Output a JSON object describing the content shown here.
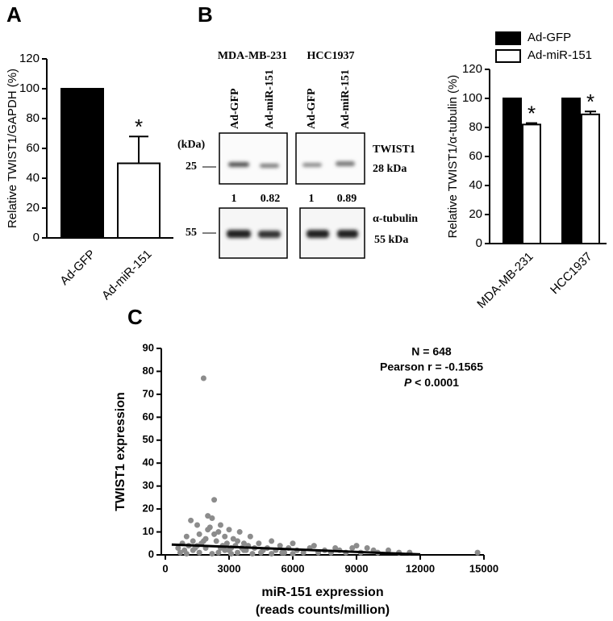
{
  "panel_labels": [
    "A",
    "B",
    "C"
  ],
  "chart_data": [
    {
      "type": "bar",
      "ylabel": "Relative TWIST1/GAPDH (%)",
      "categories": [
        "Ad-GFP",
        "Ad-miR-151"
      ],
      "values": [
        100,
        50
      ],
      "errors": [
        null,
        18
      ],
      "colors": [
        "#000000",
        "#ffffff"
      ],
      "significance": [
        null,
        "*"
      ],
      "ylim": [
        0,
        120
      ],
      "yticks": [
        0,
        20,
        40,
        60,
        80,
        100,
        120
      ]
    },
    {
      "type": "grouped_bar",
      "ylabel": "Relative TWIST1/α-tubulin (%)",
      "categories": [
        "MDA-MB-231",
        "HCC1937"
      ],
      "series": [
        {
          "name": "Ad-GFP",
          "color": "#000000",
          "values": [
            100,
            100
          ]
        },
        {
          "name": "Ad-miR-151",
          "color": "#ffffff",
          "values": [
            82,
            89
          ],
          "errors": [
            1,
            2
          ],
          "significance": [
            "*",
            "*"
          ]
        }
      ],
      "ylim": [
        0,
        120
      ],
      "yticks": [
        0,
        20,
        40,
        60,
        80,
        100,
        120
      ]
    },
    {
      "type": "scatter",
      "ylabel": "TWIST1 expression",
      "xlabel": [
        "miR-151 expression",
        "(reads counts/million)"
      ],
      "stats": [
        "N = 648",
        "Pearson r = -0.1565"
      ],
      "p_value": {
        "symbol": "P",
        "text": " < 0.0001"
      },
      "color": "#8c8c8c",
      "x": [
        1800,
        2300,
        1200,
        1500,
        2000,
        2200,
        2600,
        3000,
        3500,
        4000,
        5000,
        6000,
        7000,
        8000,
        9000,
        9500,
        10500,
        11500,
        14700,
        600,
        800,
        900,
        1000,
        1100,
        1300,
        1400,
        1600,
        1700,
        1900,
        2100,
        2400,
        2500,
        2700,
        2800,
        2900,
        3100,
        3200,
        3300,
        3400,
        3600,
        3700,
        3800,
        3900,
        4200,
        4400,
        4600,
        4800,
        5200,
        5400,
        5600,
        5800,
        6200,
        6500,
        6800,
        7200,
        7500,
        7800,
        8200,
        8500,
        8800,
        9200,
        9800,
        10000,
        11000,
        700,
        1000,
        1300,
        1600,
        1900,
        2200,
        2500,
        2800,
        3100,
        3400,
        3700,
        4100,
        4500,
        5000,
        5500,
        6000,
        1500,
        2000,
        2600,
        3000,
        1800,
        2300
      ],
      "values": [
        77,
        24,
        15,
        13,
        17,
        16,
        13,
        11,
        10,
        8,
        6,
        5,
        4,
        3,
        4,
        3,
        2,
        1,
        1,
        3,
        5,
        2,
        8,
        4,
        6,
        3,
        9,
        5,
        7,
        12,
        6,
        10,
        4,
        8,
        5,
        3,
        7,
        4,
        6,
        3,
        5,
        2,
        4,
        3,
        5,
        2,
        3,
        2,
        4,
        1,
        3,
        2,
        1,
        3,
        1,
        2,
        1,
        2,
        1,
        3,
        1,
        2,
        1,
        1,
        1,
        0.5,
        2,
        1,
        3,
        0.5,
        1,
        2,
        0.5,
        1,
        2,
        0.5,
        1,
        0.5,
        1,
        0.5,
        4,
        11,
        3,
        2,
        6,
        9
      ],
      "fit": {
        "x": [
          300,
          12000
        ],
        "values": [
          4.5,
          0.2
        ]
      },
      "xlim": [
        0,
        15000
      ],
      "xticks": [
        0,
        3000,
        6000,
        9000,
        12000,
        15000
      ],
      "ylim": [
        0,
        90
      ],
      "yticks": [
        0,
        10,
        20,
        30,
        40,
        50,
        60,
        70,
        80,
        90
      ]
    }
  ],
  "blot": {
    "cell_lines": [
      "MDA-MB-231",
      "HCC1937"
    ],
    "lanes": [
      "Ad-GFP",
      "Ad-miR-151",
      "Ad-GFP",
      "Ad-miR-151"
    ],
    "unit": "(kDa)",
    "markers": [
      "25",
      "55"
    ],
    "proteins": [
      {
        "name": "TWIST1",
        "size": "28 kDa"
      },
      {
        "name": "α-tubulin",
        "size": "55 kDa"
      }
    ],
    "quantification": [
      1,
      0.82,
      1,
      0.89
    ]
  }
}
